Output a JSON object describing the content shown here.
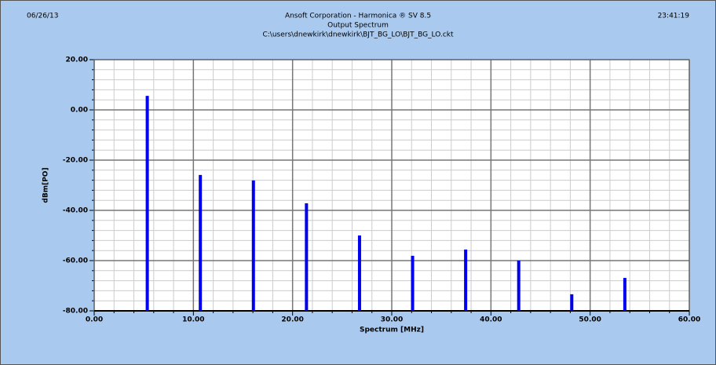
{
  "chart_data": {
    "type": "stem",
    "date": "06/26/13",
    "time": "23:41:19",
    "title": "Ansoft Corporation - Harmonica ® SV 8.5",
    "subtitle": "Output Spectrum",
    "filename": "C:\\users\\dnewkirk\\dnewkirk\\BJT_BG_LO\\BJT_BG_LO.ckt",
    "x_label": "Spectrum [MHz]",
    "y_label": "dBm[PO]",
    "x": [
      5.35,
      10.7,
      16.05,
      21.4,
      26.75,
      32.1,
      37.45,
      42.8,
      48.15,
      53.5
    ],
    "series": [
      {
        "color": "#0000ee",
        "values": [
          5.6,
          -25.9,
          -28.1,
          -37.2,
          -50.0,
          -58.1,
          -55.6,
          -60.0,
          -73.4,
          -66.9
        ]
      }
    ],
    "xlim": [
      0,
      60
    ],
    "ylim": [
      -80,
      20
    ],
    "xticks": [
      {
        "value": 0,
        "label": "0.00"
      },
      {
        "value": 10,
        "label": "10.00"
      },
      {
        "value": 20,
        "label": "20.00"
      },
      {
        "value": 30,
        "label": "30.00"
      },
      {
        "value": 40,
        "label": "40.00"
      },
      {
        "value": 50,
        "label": "50.00"
      },
      {
        "value": 60,
        "label": "60.00"
      }
    ],
    "yticks": [
      {
        "value": -80,
        "label": "-80.00"
      },
      {
        "value": -60,
        "label": "-60.00"
      },
      {
        "value": -40,
        "label": "-40.00"
      },
      {
        "value": -20,
        "label": "-20.00"
      },
      {
        "value": 0,
        "label": "0.00"
      },
      {
        "value": 20,
        "label": "20.00"
      }
    ],
    "grid": true
  }
}
